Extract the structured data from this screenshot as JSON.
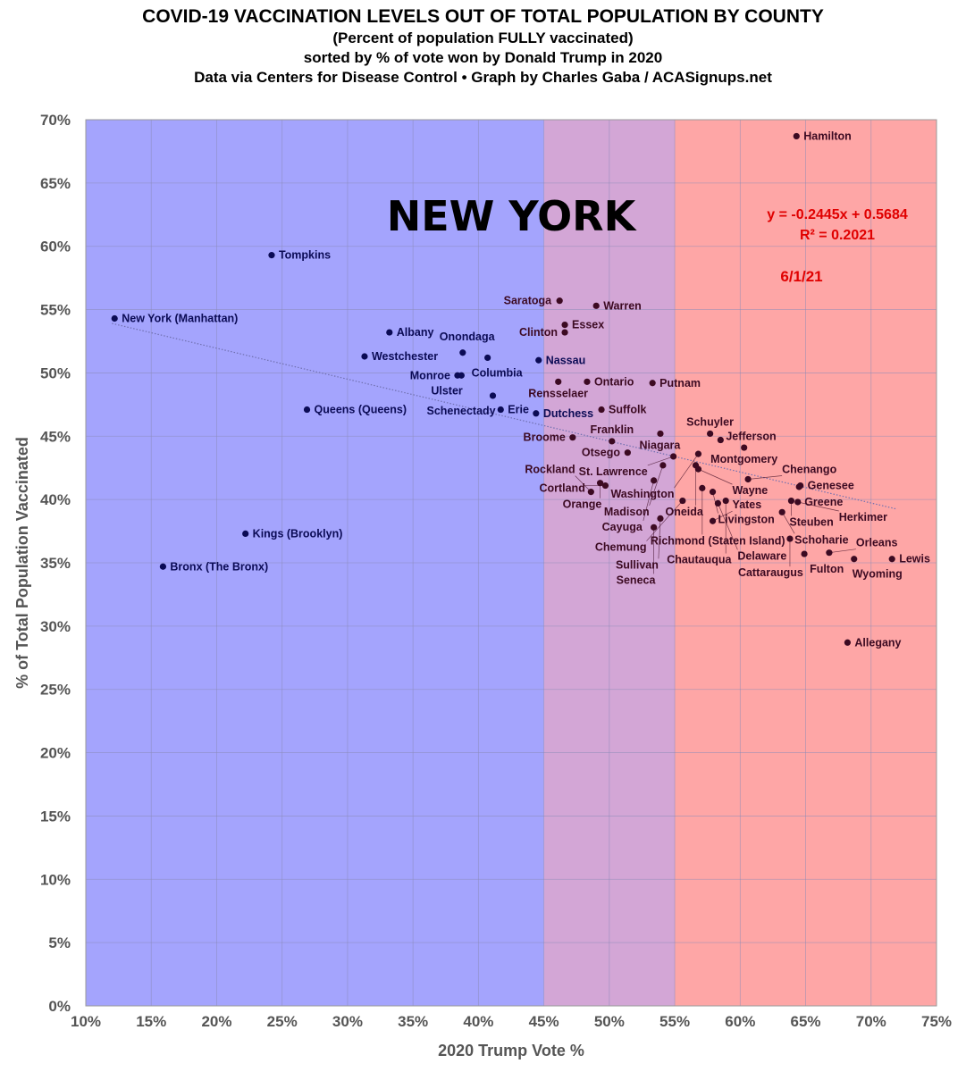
{
  "chart_data": {
    "type": "scatter",
    "title": "COVID-19 VACCINATION LEVELS OUT OF TOTAL POPULATION BY COUNTY",
    "subtitles": [
      "(Percent of population FULLY vaccinated)",
      "sorted by % of vote won by Donald Trump in 2020",
      "Data via Centers for Disease Control • Graph by Charles Gaba / ACASignups.net"
    ],
    "state_label": "NEW YORK",
    "date_label": "6/1/21",
    "trendline": {
      "equation": "y = -0.2445x + 0.5684",
      "r2": "R² = 0.2021",
      "slope": -0.2445,
      "intercept": 0.5684,
      "x_range": [
        12,
        72
      ]
    },
    "xlabel": "2020 Trump Vote %",
    "ylabel": "% of Total Population Vaccinated",
    "xlim": [
      10,
      75
    ],
    "ylim": [
      0,
      70
    ],
    "xticks": [
      "10%",
      "15%",
      "20%",
      "25%",
      "30%",
      "35%",
      "40%",
      "45%",
      "50%",
      "55%",
      "60%",
      "65%",
      "70%",
      "75%"
    ],
    "yticks": [
      "0%",
      "5%",
      "10%",
      "15%",
      "20%",
      "25%",
      "30%",
      "35%",
      "40%",
      "45%",
      "50%",
      "55%",
      "60%",
      "65%",
      "70%"
    ],
    "grid": true,
    "bands": [
      {
        "from": 10,
        "to": 45,
        "color": "#a4a4fd"
      },
      {
        "from": 45,
        "to": 55,
        "color": "#d3a6d6"
      },
      {
        "from": 55,
        "to": 75,
        "color": "#fea6a6"
      }
    ],
    "colors": {
      "blue_dot": "#0b0b55",
      "red_dot": "#3c0a22",
      "trend": "#7070b0",
      "annotation": "#e00000"
    },
    "points": [
      [
        "Hamilton",
        64.3,
        68.7
      ],
      [
        "Tompkins",
        24.2,
        59.3
      ],
      [
        "New York  (Manhattan)",
        12.2,
        54.3
      ],
      [
        "Albany",
        33.2,
        53.2
      ],
      [
        "Westchester",
        31.3,
        51.3
      ],
      [
        "Queens  (Queens)",
        26.9,
        47.1
      ],
      [
        "Kings  (Brooklyn)",
        22.2,
        37.3
      ],
      [
        "Bronx  (The Bronx)",
        15.9,
        34.7
      ],
      [
        "Saratoga",
        46.2,
        55.7
      ],
      [
        "Warren",
        49.0,
        55.3
      ],
      [
        "Essex",
        46.6,
        53.8
      ],
      [
        "Clinton",
        46.6,
        53.2
      ],
      [
        "Onondaga",
        38.8,
        51.6
      ],
      [
        "Columbia",
        40.7,
        51.2
      ],
      [
        "Nassau",
        44.6,
        51.0
      ],
      [
        "Monroe",
        38.4,
        49.8
      ],
      [
        "Ulster",
        38.7,
        49.8
      ],
      [
        "Rensselaer",
        46.1,
        49.3
      ],
      [
        "Ontario",
        48.3,
        49.3
      ],
      [
        "Putnam",
        53.3,
        49.2
      ],
      [
        "Schenectady",
        41.1,
        48.2
      ],
      [
        "Erie",
        41.7,
        47.1
      ],
      [
        "Dutchess",
        44.4,
        46.8
      ],
      [
        "Suffolk",
        49.4,
        47.1
      ],
      [
        "Broome",
        47.2,
        44.9
      ],
      [
        "Franklin",
        50.2,
        44.6
      ],
      [
        "Niagara",
        53.9,
        45.2
      ],
      [
        "Schuyler",
        57.7,
        45.2
      ],
      [
        "Jefferson",
        58.5,
        44.7
      ],
      [
        "Montgomery",
        60.3,
        44.1
      ],
      [
        "Otsego",
        51.4,
        43.7
      ],
      [
        "St. Lawrence",
        54.9,
        43.4
      ],
      [
        "Washington",
        56.8,
        43.6
      ],
      [
        "Madison",
        54.1,
        42.7
      ],
      [
        "Oneida",
        56.6,
        42.7
      ],
      [
        "Wayne",
        56.8,
        42.4
      ],
      [
        "Chenango",
        60.6,
        41.6
      ],
      [
        "Cayuga",
        53.4,
        41.5
      ],
      [
        "Orange",
        49.3,
        41.3
      ],
      [
        "Cortland",
        49.7,
        41.1
      ],
      [
        "Rockland",
        48.6,
        40.6
      ],
      [
        "Richmond  (Staten Island)",
        57.1,
        40.9
      ],
      [
        "Livingston",
        57.9,
        40.6
      ],
      [
        "Genesee",
        64.6,
        41.1
      ],
      [
        "Greene",
        64.5,
        41.0
      ],
      [
        "Steuben",
        63.9,
        39.9
      ],
      [
        "Herkimer",
        64.4,
        39.8
      ],
      [
        "Chemung",
        55.6,
        39.9
      ],
      [
        "Chautauqua",
        58.9,
        39.9
      ],
      [
        "Delaware",
        58.3,
        39.7
      ],
      [
        "Schoharie",
        63.2,
        39.0
      ],
      [
        "Sullivan",
        53.9,
        38.5
      ],
      [
        "Yates",
        57.9,
        38.3
      ],
      [
        "Seneca",
        53.4,
        37.8
      ],
      [
        "Cattaraugus",
        63.8,
        36.9
      ],
      [
        "Fulton",
        64.9,
        35.7
      ],
      [
        "Orleans",
        66.8,
        35.8
      ],
      [
        "Lewis",
        71.6,
        35.3
      ],
      [
        "Wyoming",
        68.7,
        35.3
      ],
      [
        "Allegany",
        68.2,
        28.7
      ]
    ]
  }
}
